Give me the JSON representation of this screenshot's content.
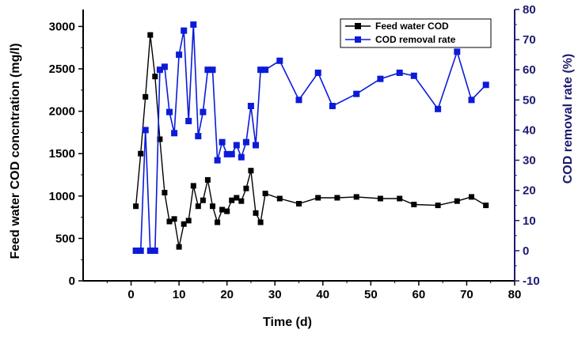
{
  "colors": {
    "feed": "#000000",
    "removal": "#0b1bd8",
    "right_axis": "#1c1a6e",
    "axes": "#000000"
  },
  "legend": {
    "feed_label": "Feed water COD",
    "removal_label": "COD removal rate"
  },
  "chart_data": {
    "type": "line",
    "title": "",
    "xlabel": "Time (d)",
    "ylabel": "Feed water COD concntration (mg/l)",
    "y2label": "COD removal rate (%)",
    "xlim": [
      -10,
      80
    ],
    "ylim": [
      0,
      3200
    ],
    "y2lim": [
      -10,
      80
    ],
    "xticks": [
      0,
      10,
      20,
      30,
      40,
      50,
      60,
      70,
      80
    ],
    "yticks": [
      0,
      500,
      1000,
      1500,
      2000,
      2500,
      3000
    ],
    "y2ticks": [
      -10,
      0,
      10,
      20,
      30,
      40,
      50,
      60,
      70,
      80
    ],
    "legend_position": "top-right",
    "series": [
      {
        "name": "Feed water COD",
        "axis": "left",
        "marker": "square",
        "x": [
          1,
          2,
          3,
          4,
          5,
          6,
          7,
          8,
          9,
          10,
          11,
          12,
          13,
          14,
          15,
          16,
          17,
          18,
          19,
          20,
          21,
          22,
          23,
          24,
          25,
          26,
          27,
          28,
          31,
          35,
          39,
          43,
          47,
          52,
          56,
          59,
          64,
          68,
          71,
          74
        ],
        "values": [
          880,
          1500,
          2170,
          2900,
          2410,
          1670,
          1040,
          700,
          730,
          400,
          670,
          710,
          1120,
          880,
          950,
          1190,
          880,
          690,
          840,
          820,
          950,
          980,
          940,
          1090,
          1300,
          800,
          690,
          1030,
          970,
          910,
          980,
          980,
          990,
          970,
          970,
          900,
          890,
          940,
          990,
          890
        ]
      },
      {
        "name": "COD removal rate",
        "axis": "right",
        "marker": "square",
        "x": [
          1,
          2,
          3,
          4,
          5,
          6,
          7,
          8,
          9,
          10,
          11,
          12,
          13,
          14,
          15,
          16,
          17,
          18,
          19,
          20,
          21,
          22,
          23,
          24,
          25,
          26,
          27,
          28,
          31,
          35,
          39,
          42,
          47,
          52,
          56,
          59,
          64,
          68,
          71,
          74
        ],
        "values": [
          0,
          0,
          40,
          0,
          0,
          60,
          61,
          46,
          39,
          65,
          73,
          43,
          75,
          38,
          46,
          60,
          60,
          30,
          36,
          32,
          32,
          35,
          31,
          36,
          48,
          35,
          60,
          60,
          63,
          50,
          59,
          48,
          52,
          57,
          59,
          58,
          47,
          66,
          50,
          55
        ]
      }
    ]
  }
}
